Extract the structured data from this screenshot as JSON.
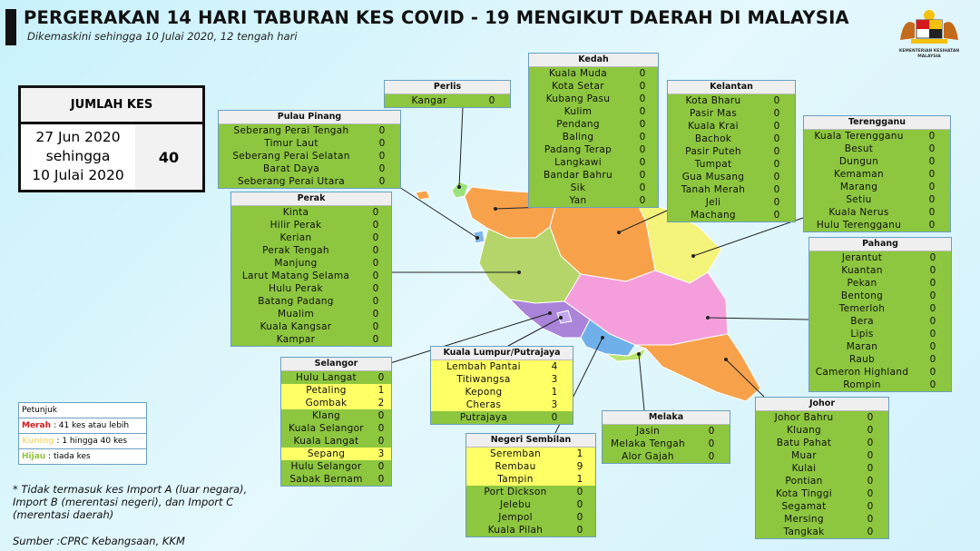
{
  "header": {
    "title": "PERGERAKAN 14 HARI TABURAN KES COVID - 19 MENGIKUT DAERAH DI MALAYSIA",
    "subtitle": "Dikemaskini sehingga 10 Julai 2020, 12 tengah hari",
    "logo_text": "KEMENTERIAN KESIHATAN MALAYSIA"
  },
  "total": {
    "label": "JUMLAH KES",
    "date_from": "27 Jun 2020",
    "date_sep": "sehingga",
    "date_to": "10 Julai 2020",
    "value": "40"
  },
  "colors": {
    "green": "#8dc63f",
    "yellow": "#ffff66",
    "red": "#d7191c",
    "header": "#efefef"
  },
  "states": [
    {
      "name": "Perlis",
      "districts": [
        [
          "Kangar",
          "0"
        ]
      ]
    },
    {
      "name": "Kedah",
      "districts": [
        [
          "Kuala Muda",
          "0"
        ],
        [
          "Kota Setar",
          "0"
        ],
        [
          "Kubang Pasu",
          "0"
        ],
        [
          "Kulim",
          "0"
        ],
        [
          "Pendang",
          "0"
        ],
        [
          "Baling",
          "0"
        ],
        [
          "Padang Terap",
          "0"
        ],
        [
          "Langkawi",
          "0"
        ],
        [
          "Bandar Bahru",
          "0"
        ],
        [
          "Sik",
          "0"
        ],
        [
          "Yan",
          "0"
        ]
      ]
    },
    {
      "name": "Kelantan",
      "districts": [
        [
          "Kota Bharu",
          "0"
        ],
        [
          "Pasir Mas",
          "0"
        ],
        [
          "Kuala Krai",
          "0"
        ],
        [
          "Bachok",
          "0"
        ],
        [
          "Pasir Puteh",
          "0"
        ],
        [
          "Tumpat",
          "0"
        ],
        [
          "Gua Musang",
          "0"
        ],
        [
          "Tanah Merah",
          "0"
        ],
        [
          "Jeli",
          "0"
        ],
        [
          "Machang",
          "0"
        ]
      ]
    },
    {
      "name": "Terengganu",
      "districts": [
        [
          "Kuala Terengganu",
          "0"
        ],
        [
          "Besut",
          "0"
        ],
        [
          "Dungun",
          "0"
        ],
        [
          "Kemaman",
          "0"
        ],
        [
          "Marang",
          "0"
        ],
        [
          "Setiu",
          "0"
        ],
        [
          "Kuala Nerus",
          "0"
        ],
        [
          "Hulu Terengganu",
          "0"
        ]
      ]
    },
    {
      "name": "Pulau Pinang",
      "districts": [
        [
          "Seberang Perai Tengah",
          "0"
        ],
        [
          "Timur Laut",
          "0"
        ],
        [
          "Seberang Perai Selatan",
          "0"
        ],
        [
          "Barat Daya",
          "0"
        ],
        [
          "Seberang Perai Utara",
          "0"
        ]
      ]
    },
    {
      "name": "Perak",
      "districts": [
        [
          "Kinta",
          "0"
        ],
        [
          "Hilir Perak",
          "0"
        ],
        [
          "Kerian",
          "0"
        ],
        [
          "Perak Tengah",
          "0"
        ],
        [
          "Manjung",
          "0"
        ],
        [
          "Larut Matang Selama",
          "0"
        ],
        [
          "Hulu Perak",
          "0"
        ],
        [
          "Batang Padang",
          "0"
        ],
        [
          "Mualim",
          "0"
        ],
        [
          "Kuala Kangsar",
          "0"
        ],
        [
          "Kampar",
          "0"
        ]
      ]
    },
    {
      "name": "Pahang",
      "districts": [
        [
          "Jerantut",
          "0"
        ],
        [
          "Kuantan",
          "0"
        ],
        [
          "Pekan",
          "0"
        ],
        [
          "Bentong",
          "0"
        ],
        [
          "Temerloh",
          "0"
        ],
        [
          "Bera",
          "0"
        ],
        [
          "Lipis",
          "0"
        ],
        [
          "Maran",
          "0"
        ],
        [
          "Raub",
          "0"
        ],
        [
          "Cameron Highland",
          "0"
        ],
        [
          "Rompin",
          "0"
        ]
      ]
    },
    {
      "name": "Selangor",
      "districts": [
        [
          "Hulu Langat",
          "0"
        ],
        [
          "Petaling",
          "1"
        ],
        [
          "Gombak",
          "2"
        ],
        [
          "Klang",
          "0"
        ],
        [
          "Kuala Selangor",
          "0"
        ],
        [
          "Kuala Langat",
          "0"
        ],
        [
          "Sepang",
          "3"
        ],
        [
          "Hulu Selangor",
          "0"
        ],
        [
          "Sabak Bernam",
          "0"
        ]
      ]
    },
    {
      "name": "Kuala Lumpur/Putrajaya",
      "districts": [
        [
          "Lembah Pantai",
          "4"
        ],
        [
          "Titiwangsa",
          "3"
        ],
        [
          "Kepong",
          "1"
        ],
        [
          "Cheras",
          "3"
        ],
        [
          "Putrajaya",
          "0"
        ]
      ]
    },
    {
      "name": "Negeri Sembilan",
      "districts": [
        [
          "Seremban",
          "1"
        ],
        [
          "Rembau",
          "9"
        ],
        [
          "Tampin",
          "1"
        ],
        [
          "Port Dickson",
          "0"
        ],
        [
          "Jelebu",
          "0"
        ],
        [
          "Jempol",
          "0"
        ],
        [
          "Kuala Pilah",
          "0"
        ]
      ]
    },
    {
      "name": "Melaka",
      "districts": [
        [
          "Jasin",
          "0"
        ],
        [
          "Melaka Tengah",
          "0"
        ],
        [
          "Alor Gajah",
          "0"
        ]
      ]
    },
    {
      "name": "Johor",
      "districts": [
        [
          "Johor Bahru",
          "0"
        ],
        [
          "Kluang",
          "0"
        ],
        [
          "Batu Pahat",
          "0"
        ],
        [
          "Muar",
          "0"
        ],
        [
          "Kulai",
          "0"
        ],
        [
          "Pontian",
          "0"
        ],
        [
          "Kota Tinggi",
          "0"
        ],
        [
          "Segamat",
          "0"
        ],
        [
          "Mersing",
          "0"
        ],
        [
          "Tangkak",
          "0"
        ]
      ]
    }
  ],
  "legend": {
    "title": "Petunjuk",
    "items": [
      {
        "key": "Merah",
        "text": " : 41 kes atau lebih",
        "color": "#d7191c"
      },
      {
        "key": "Kuning",
        "text": " : 1 hingga 40 kes",
        "color": "#f7e08a"
      },
      {
        "key": "Hijau",
        "text": " : tiada kes",
        "color": "#8dc63f"
      }
    ]
  },
  "footnote": "* Tidak termasuk kes Import A (luar negara), Import B (merentasi negeri),  dan Import C (merentasi daerah)",
  "source": "Sumber :CPRC Kebangsaan,  KKM"
}
